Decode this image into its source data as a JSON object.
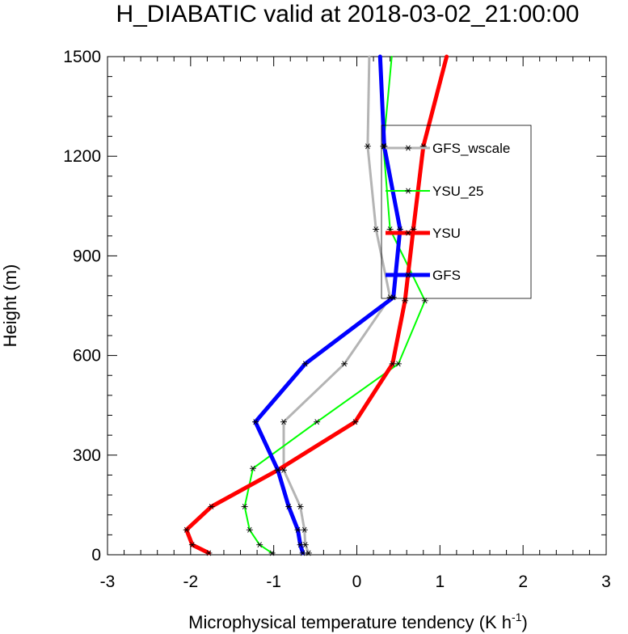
{
  "chart_data": {
    "type": "line",
    "title": "H_DIABATIC valid at 2018-03-02_21:00:00",
    "xlabel": "Microphysical temperature tendency (K h",
    "xlabel_sup": "-1",
    "xlabel_suffix": ")",
    "ylabel": "Height (m)",
    "xlim": [
      -3,
      3
    ],
    "ylim": [
      0,
      1500
    ],
    "x_ticks": [
      -3,
      -2,
      -1,
      0,
      1,
      2,
      3
    ],
    "x_tick_labels": [
      "-3",
      "-2",
      "-1",
      "0",
      "1",
      "2",
      "3"
    ],
    "y_ticks": [
      0,
      300,
      600,
      900,
      1200,
      1500
    ],
    "y_tick_labels": [
      "0",
      "300",
      "600",
      "900",
      "1200",
      "1500"
    ],
    "legend_position": "upper-right",
    "series": [
      {
        "name": "GFS_wscale",
        "color": "#b4b4b4",
        "width": 3,
        "points": [
          [
            -0.58,
            5
          ],
          [
            -0.62,
            30
          ],
          [
            -0.63,
            75
          ],
          [
            -0.68,
            145
          ],
          [
            -0.88,
            255
          ],
          [
            -0.88,
            400
          ],
          [
            -0.15,
            575
          ],
          [
            0.4,
            775
          ],
          [
            0.23,
            980
          ],
          [
            0.13,
            1230
          ],
          [
            0.15,
            1500
          ]
        ]
      },
      {
        "name": "YSU_25",
        "color": "#00ff00",
        "width": 2,
        "points": [
          [
            -1.02,
            5
          ],
          [
            -1.17,
            30
          ],
          [
            -1.29,
            75
          ],
          [
            -1.35,
            145
          ],
          [
            -1.25,
            260
          ],
          [
            -0.48,
            400
          ],
          [
            0.5,
            575
          ],
          [
            0.82,
            765
          ],
          [
            0.4,
            980
          ],
          [
            0.32,
            1230
          ],
          [
            0.42,
            1500
          ]
        ]
      },
      {
        "name": "YSU",
        "color": "#ff0000",
        "width": 5,
        "points": [
          [
            -1.78,
            5
          ],
          [
            -1.98,
            30
          ],
          [
            -2.05,
            75
          ],
          [
            -1.75,
            145
          ],
          [
            -0.95,
            255
          ],
          [
            -0.02,
            400
          ],
          [
            0.43,
            575
          ],
          [
            0.58,
            765
          ],
          [
            0.68,
            980
          ],
          [
            0.8,
            1230
          ],
          [
            1.08,
            1500
          ]
        ]
      },
      {
        "name": "GFS",
        "color": "#0000ff",
        "width": 5,
        "points": [
          [
            -0.65,
            5
          ],
          [
            -0.68,
            30
          ],
          [
            -0.71,
            75
          ],
          [
            -0.82,
            145
          ],
          [
            -0.95,
            255
          ],
          [
            -1.22,
            400
          ],
          [
            -0.62,
            575
          ],
          [
            0.44,
            775
          ],
          [
            0.52,
            980
          ],
          [
            0.33,
            1230
          ],
          [
            0.28,
            1500
          ]
        ]
      }
    ]
  }
}
